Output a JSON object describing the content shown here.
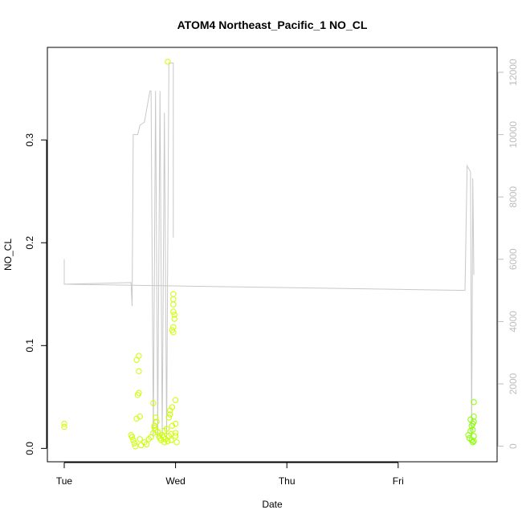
{
  "chart_data": {
    "type": "scatter",
    "title": "ATOM4 Northeast_Pacific_1 NO_CL",
    "xlabel": "Date",
    "ylabel": "NO_CL",
    "x_ticks": [
      "Tue",
      "Wed",
      "Thu",
      "Fri"
    ],
    "x_range_days": [
      0,
      3.84
    ],
    "ylim": [
      -0.013,
      0.39
    ],
    "y_ticks": [
      0.0,
      0.1,
      0.2,
      0.3
    ],
    "y2lim": [
      -500,
      12800
    ],
    "y2_ticks": [
      0,
      2000,
      4000,
      6000,
      8000,
      10000,
      12000
    ],
    "grid": false,
    "legend": "none",
    "colors": {
      "points_early": "#ccff00",
      "points_late": "#88ff00",
      "line": "#c8c8c8",
      "axis": "#000000",
      "right_axis": "#bdbdbd"
    },
    "series": [
      {
        "type": "scatter",
        "axis": "left",
        "points": [
          [
            0.0,
            0.024
          ],
          [
            0.0,
            0.021
          ],
          [
            0.6,
            0.013
          ],
          [
            0.61,
            0.011
          ],
          [
            0.62,
            0.008
          ],
          [
            0.63,
            0.005
          ],
          [
            0.64,
            0.002
          ],
          [
            0.65,
            0.029
          ],
          [
            0.66,
            0.052
          ],
          [
            0.67,
            0.054
          ],
          [
            0.68,
            0.009
          ],
          [
            0.69,
            0.003
          ],
          [
            0.65,
            0.086
          ],
          [
            0.67,
            0.09
          ],
          [
            0.67,
            0.075
          ],
          [
            0.68,
            0.031
          ],
          [
            0.72,
            0.006
          ],
          [
            0.74,
            0.004
          ],
          [
            0.76,
            0.009
          ],
          [
            0.78,
            0.011
          ],
          [
            0.8,
            0.015
          ],
          [
            0.81,
            0.022
          ],
          [
            0.82,
            0.018
          ],
          [
            0.83,
            0.026
          ],
          [
            0.84,
            0.016
          ],
          [
            0.85,
            0.012
          ],
          [
            0.8,
            0.044
          ],
          [
            0.81,
            0.02
          ],
          [
            0.82,
            0.03
          ],
          [
            0.86,
            0.01
          ],
          [
            0.87,
            0.008
          ],
          [
            0.88,
            0.013
          ],
          [
            0.89,
            0.011
          ],
          [
            0.9,
            0.006
          ],
          [
            0.9,
            0.017
          ],
          [
            0.91,
            0.009
          ],
          [
            0.92,
            0.019
          ],
          [
            0.93,
            0.007
          ],
          [
            0.94,
            0.012
          ],
          [
            0.94,
            0.03
          ],
          [
            0.95,
            0.037
          ],
          [
            0.95,
            0.033
          ],
          [
            0.96,
            0.014
          ],
          [
            0.96,
            0.008
          ],
          [
            0.97,
            0.022
          ],
          [
            0.97,
            0.04
          ],
          [
            0.97,
            0.115
          ],
          [
            0.98,
            0.118
          ],
          [
            0.98,
            0.113
          ],
          [
            0.98,
            0.133
          ],
          [
            0.99,
            0.13
          ],
          [
            0.99,
            0.126
          ],
          [
            0.98,
            0.145
          ],
          [
            0.98,
            0.15
          ],
          [
            0.98,
            0.14
          ],
          [
            1.0,
            0.047
          ],
          [
            1.0,
            0.024
          ],
          [
            1.0,
            0.015
          ],
          [
            1.0,
            0.012
          ],
          [
            1.01,
            0.006
          ],
          [
            0.93,
            0.376
          ]
        ]
      },
      {
        "type": "scatter",
        "axis": "left",
        "points": [
          [
            3.63,
            0.013
          ],
          [
            3.64,
            0.01
          ],
          [
            3.65,
            0.017
          ],
          [
            3.65,
            0.028
          ],
          [
            3.66,
            0.022
          ],
          [
            3.66,
            0.008
          ],
          [
            3.67,
            0.006
          ],
          [
            3.67,
            0.024
          ],
          [
            3.67,
            0.018
          ],
          [
            3.68,
            0.031
          ],
          [
            3.68,
            0.045
          ],
          [
            3.68,
            0.026
          ],
          [
            3.68,
            0.012
          ],
          [
            3.68,
            0.007
          ]
        ]
      },
      {
        "type": "line",
        "axis": "right",
        "points": [
          [
            0.0,
            6000
          ],
          [
            0.0,
            5200
          ],
          [
            0.6,
            5250
          ],
          [
            0.61,
            4500
          ],
          [
            0.62,
            10000
          ],
          [
            0.66,
            10000
          ],
          [
            0.68,
            10300
          ],
          [
            0.72,
            10400
          ],
          [
            0.77,
            11400
          ],
          [
            0.78,
            11400
          ],
          [
            0.8,
            300
          ],
          [
            0.82,
            11400
          ],
          [
            0.84,
            300
          ],
          [
            0.86,
            11400
          ],
          [
            0.88,
            300
          ],
          [
            0.9,
            10700
          ],
          [
            0.92,
            300
          ],
          [
            0.94,
            12300
          ],
          [
            0.98,
            12300
          ],
          [
            0.98,
            6700
          ],
          [
            0.0,
            6000
          ],
          [
            0.0,
            5200
          ],
          [
            3.6,
            5000
          ],
          [
            3.62,
            9000
          ],
          [
            3.65,
            8800
          ],
          [
            3.66,
            300
          ],
          [
            3.67,
            8600
          ],
          [
            3.68,
            5600
          ],
          [
            3.68,
            5500
          ]
        ]
      }
    ]
  }
}
